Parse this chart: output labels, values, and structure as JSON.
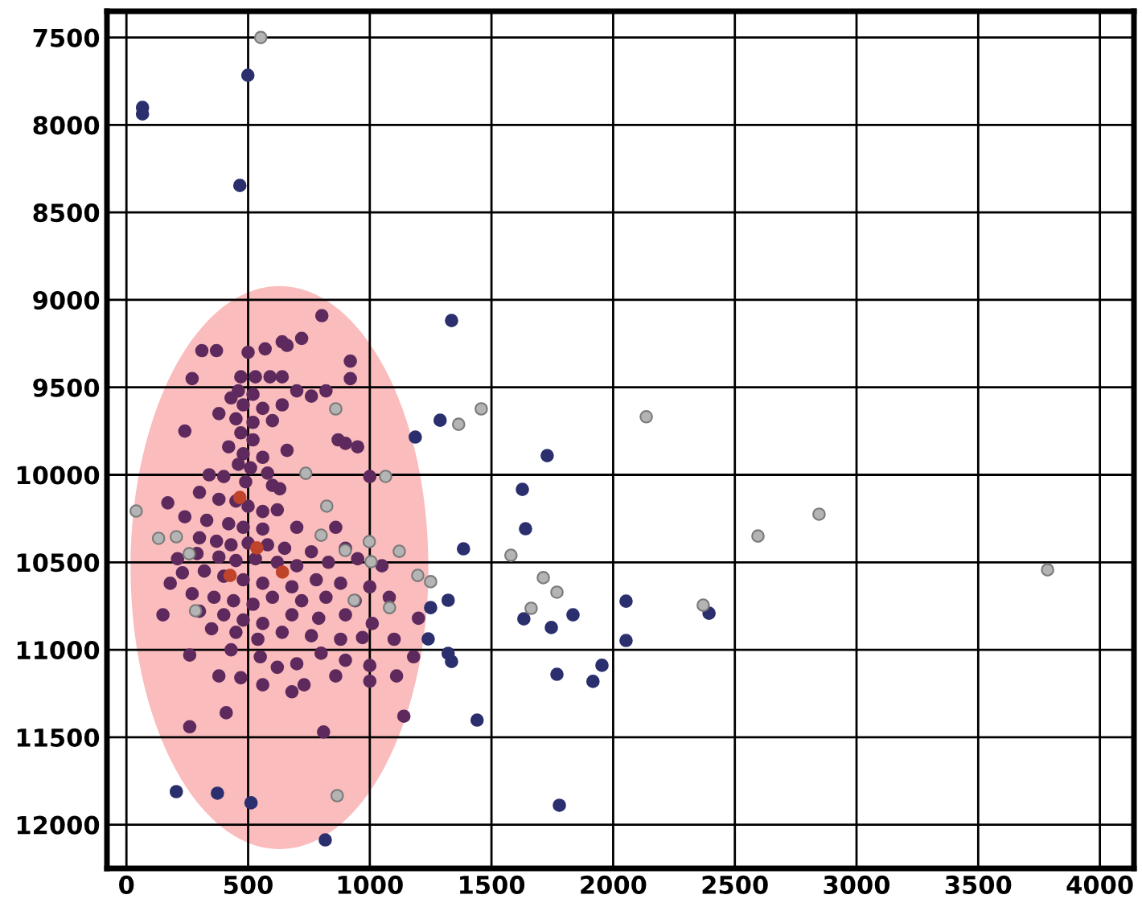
{
  "chart_data": {
    "type": "scatter",
    "xlim": [
      -80,
      4140
    ],
    "ylim": [
      12250,
      7350
    ],
    "xticks": [
      0,
      500,
      1000,
      1500,
      2000,
      2500,
      3000,
      3500,
      4000
    ],
    "yticks": [
      7500,
      8000,
      8500,
      9000,
      9500,
      10000,
      10500,
      11000,
      11500,
      12000
    ],
    "grid": true,
    "marker": "circle",
    "series": [
      {
        "color": "#2b2f6e",
        "x": [
          66,
          66,
          499,
          466,
          1336,
          1289,
          1187,
          1729,
          1627,
          1640,
          1385,
          1322,
          1250,
          1633,
          1746,
          1835,
          2053,
          2053,
          1240,
          1322,
          1336,
          1769,
          1954,
          1917,
          1441,
          1779,
          2384,
          2394,
          205,
          374,
          512,
          817
        ],
        "values": [
          7900,
          7937,
          7716,
          8346,
          9118,
          9688,
          9784,
          9890,
          10083,
          10308,
          10423,
          10717,
          10759,
          10823,
          10873,
          10800,
          10722,
          10947,
          10938,
          11021,
          11067,
          11140,
          11089,
          11181,
          11402,
          11889,
          null,
          10791,
          11811,
          11820,
          11875,
          12087
        ]
      },
      {
        "color": "#b4b4b4",
        "x": [
          552,
          860,
          1365,
          1458,
          2136,
          737,
          1065,
          823,
          40,
          132,
          205,
          258,
          284,
          800,
          899,
          998,
          1121,
          1197,
          1250,
          1580,
          1713,
          1663,
          1769,
          2370,
          2595,
          2846,
          3785,
          866,
          936,
          1081,
          1005
        ],
        "values": [
          7500,
          9623,
          9711,
          9623,
          9668,
          9991,
          10009,
          10179,
          10207,
          10363,
          10354,
          10451,
          10777,
          10345,
          10432,
          10382,
          10437,
          10575,
          10611,
          10460,
          10588,
          10763,
          10671,
          10745,
          10350,
          10225,
          10543,
          11834,
          10717,
          10759,
          10497
        ]
      },
      {
        "color": "#5e2a5e",
        "x": [
          803,
          640,
          660,
          720,
          570,
          500,
          310,
          370,
          920,
          920,
          470,
          530,
          590,
          640,
          270,
          460,
          520,
          700,
          760,
          820,
          430,
          480,
          560,
          640,
          380,
          450,
          520,
          600,
          240,
          470,
          520,
          870,
          900,
          950,
          420,
          480,
          560,
          660,
          460,
          510,
          580,
          340,
          400,
          490,
          600,
          630,
          1000,
          170,
          300,
          380,
          450,
          500,
          560,
          620,
          240,
          330,
          420,
          480,
          560,
          700,
          860,
          300,
          370,
          430,
          500,
          580,
          650,
          760,
          900,
          210,
          290,
          380,
          450,
          530,
          620,
          700,
          830,
          950,
          1050,
          230,
          320,
          400,
          480,
          560,
          680,
          780,
          880,
          1000,
          180,
          270,
          360,
          440,
          520,
          600,
          720,
          820,
          940,
          1080,
          300,
          400,
          480,
          560,
          680,
          790,
          900,
          1010,
          1200,
          350,
          450,
          540,
          640,
          760,
          880,
          970,
          1100,
          260,
          430,
          550,
          700,
          800,
          900,
          1000,
          1180,
          380,
          470,
          560,
          730,
          860,
          1000,
          1110,
          410,
          1140,
          260,
          810,
          150,
          620,
          680
        ],
        "values": [
          9090,
          9240,
          9260,
          9220,
          9280,
          9300,
          9290,
          9290,
          9350,
          9450,
          9440,
          9440,
          9440,
          9440,
          9450,
          9520,
          9540,
          9520,
          9550,
          9520,
          9560,
          9600,
          9620,
          9600,
          9650,
          9680,
          9700,
          9690,
          9750,
          9760,
          9800,
          9800,
          9820,
          9840,
          9840,
          9880,
          9900,
          9860,
          9940,
          9960,
          9990,
          10000,
          10010,
          10040,
          10060,
          10080,
          10010,
          10160,
          10100,
          10140,
          10150,
          10180,
          10210,
          10200,
          10240,
          10260,
          10280,
          10300,
          10310,
          10300,
          10300,
          10360,
          10380,
          10400,
          10390,
          10400,
          10420,
          10440,
          10420,
          10480,
          10450,
          10470,
          10490,
          10480,
          10500,
          10520,
          10500,
          10480,
          10520,
          10560,
          10550,
          10580,
          10600,
          10620,
          10640,
          10600,
          10620,
          10640,
          10620,
          10680,
          10700,
          10720,
          10740,
          10700,
          10720,
          10700,
          10720,
          10700,
          10780,
          10800,
          10830,
          10850,
          10800,
          10820,
          10800,
          10850,
          10820,
          10880,
          10900,
          10940,
          10900,
          10920,
          10940,
          10930,
          10940,
          11030,
          11000,
          11040,
          11080,
          11020,
          11060,
          11090,
          11040,
          11150,
          11160,
          11200,
          11200,
          11150,
          11180,
          11150,
          11360,
          11380,
          11440,
          11470,
          10800,
          11100,
          11240
        ]
      },
      {
        "color": "#c0442a",
        "x": [
          466,
          536,
          641,
          426
        ],
        "values": [
          10129,
          10418,
          10556,
          10575
        ]
      }
    ]
  }
}
